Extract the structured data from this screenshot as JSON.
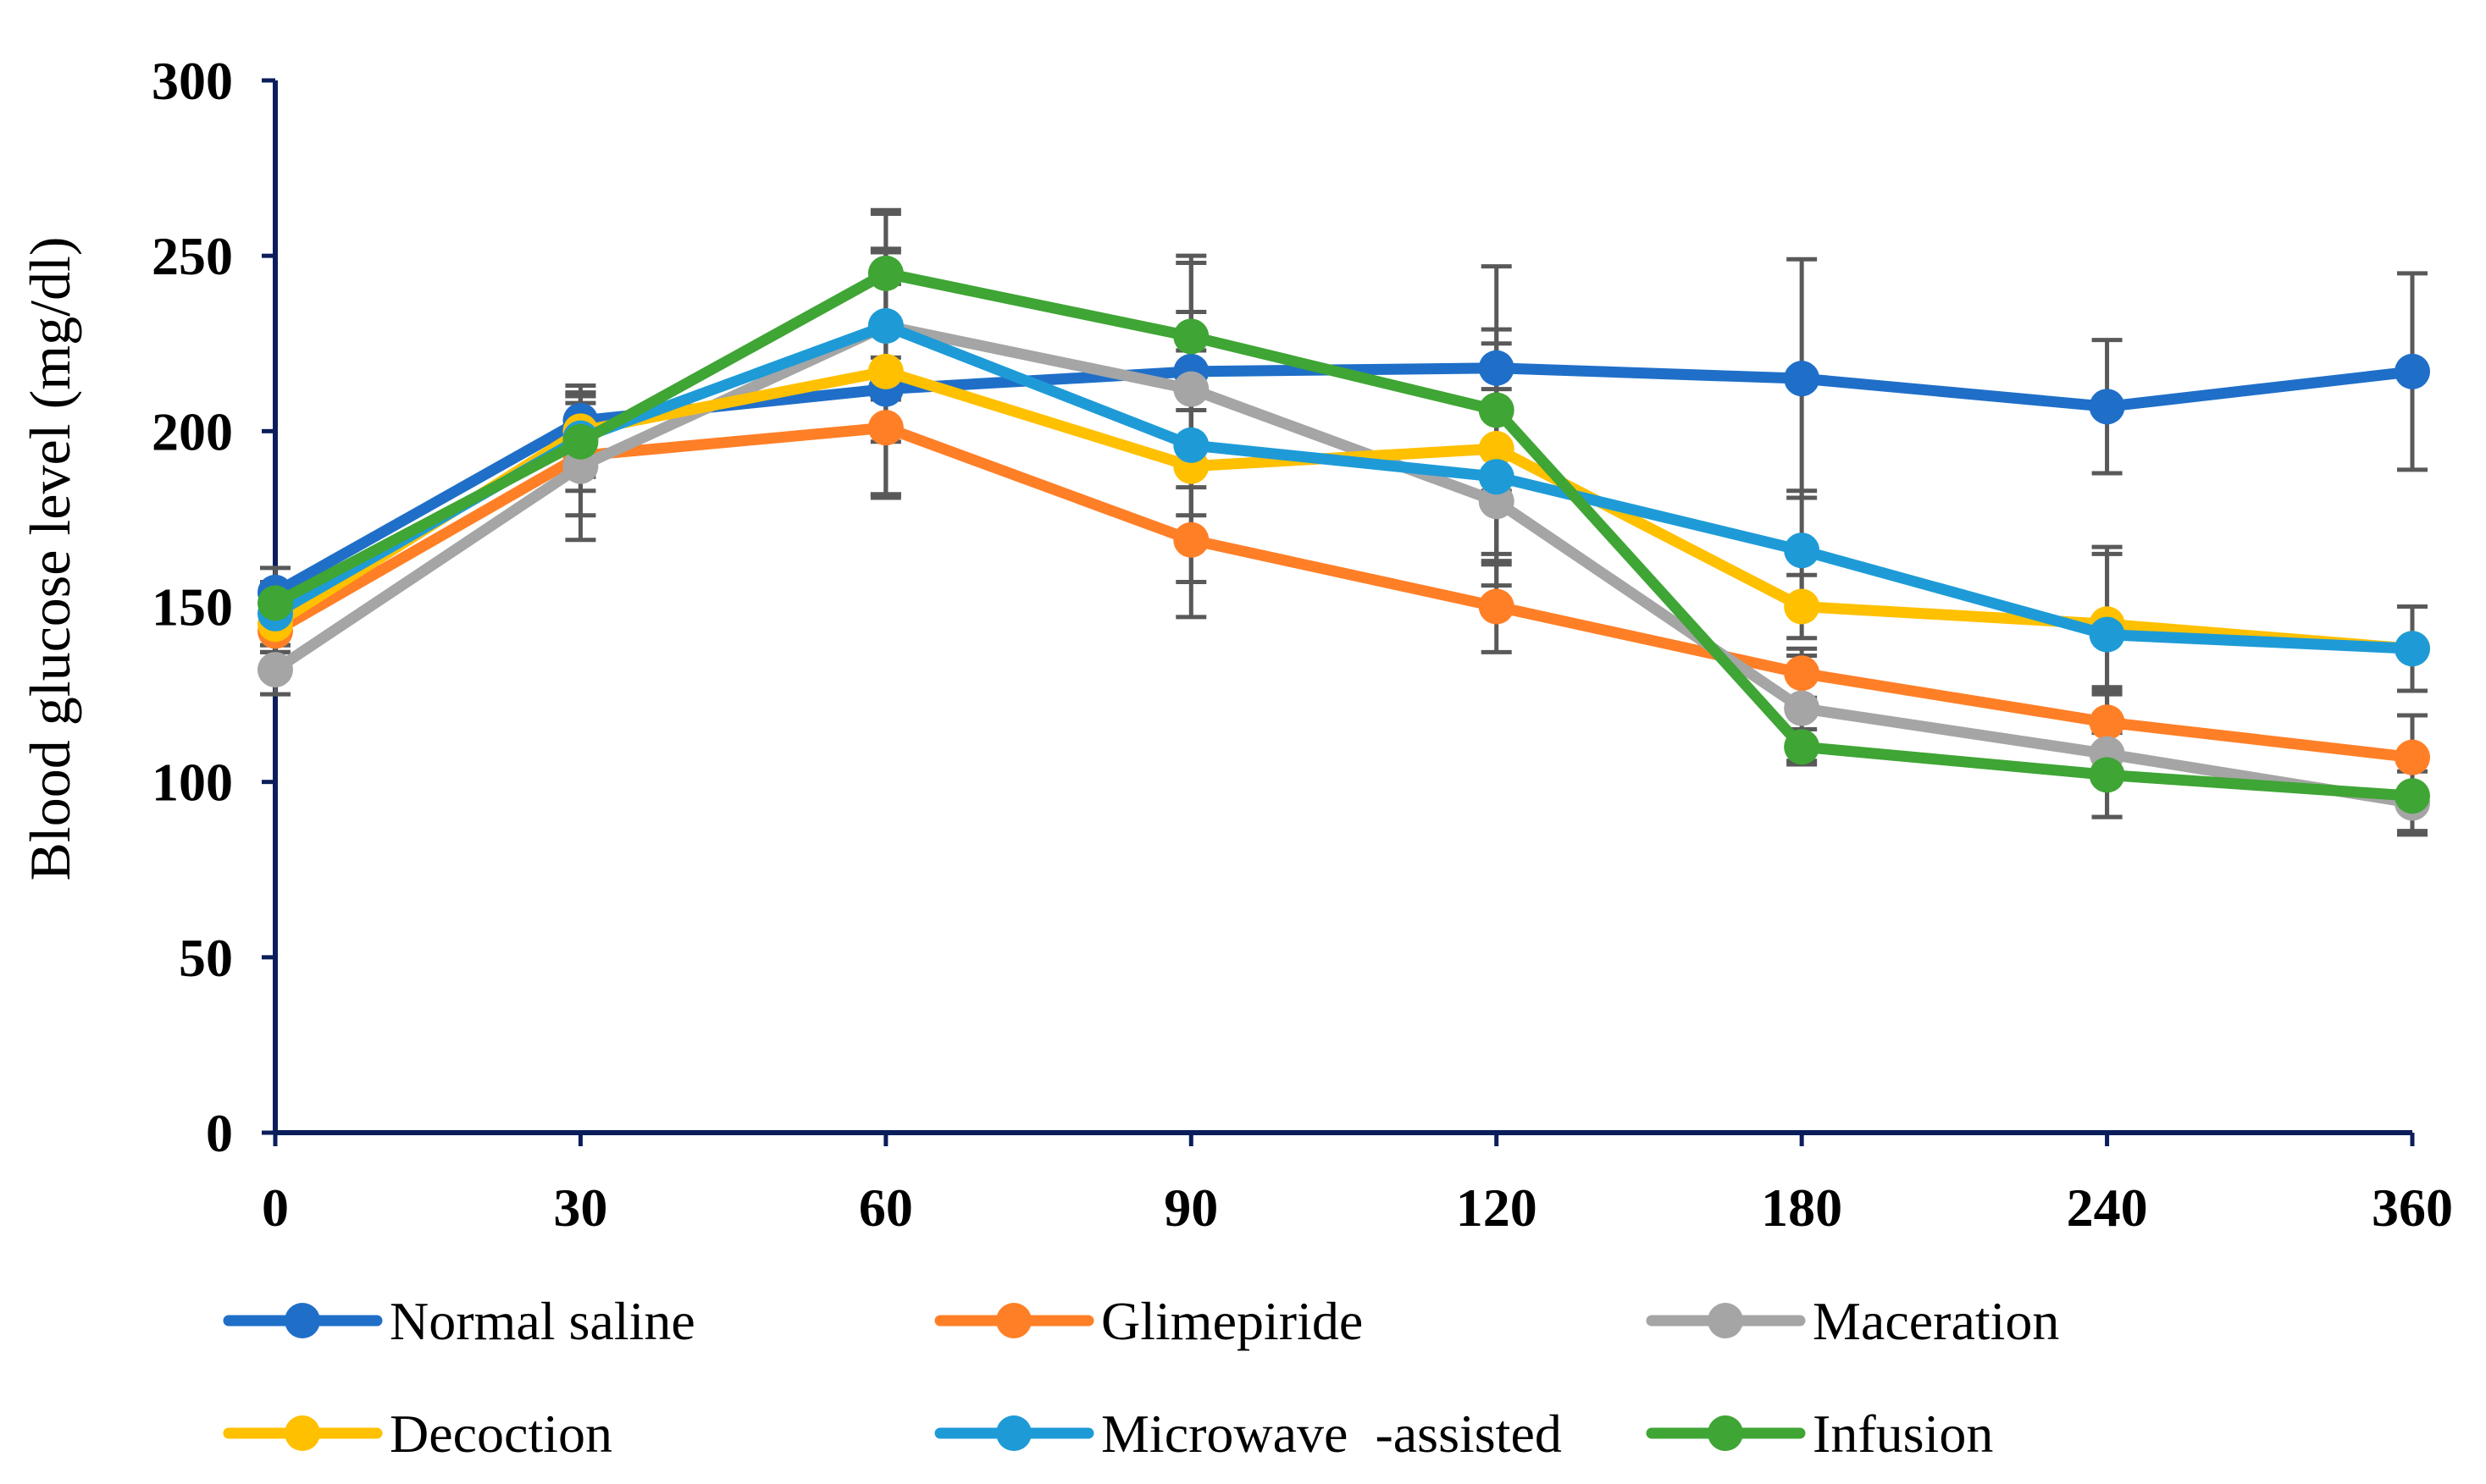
{
  "chart_data": {
    "type": "line",
    "title": "",
    "xlabel": "",
    "ylabel": "Blood glucose level (mg/dl)",
    "categories": [
      "0",
      "30",
      "60",
      "90",
      "120",
      "180",
      "240",
      "360"
    ],
    "ylim": [
      0,
      300
    ],
    "yticks": [
      0,
      50,
      100,
      150,
      200,
      250,
      300
    ],
    "grid": false,
    "legend_position": "bottom",
    "series": [
      {
        "name": "Normal saline",
        "color": "#1F6FC8",
        "values": [
          154,
          203,
          212,
          217,
          218,
          215,
          207,
          217
        ],
        "errors": [
          7,
          7,
          30,
          33,
          29,
          34,
          19,
          28
        ]
      },
      {
        "name": "Glimepiride",
        "color": "#FF7F27",
        "values": [
          143,
          193,
          201,
          169,
          150,
          131,
          117,
          107
        ],
        "errors": [
          6,
          17,
          20,
          22,
          13,
          7,
          10,
          12
        ]
      },
      {
        "name": "Maceration",
        "color": "#A5A5A5",
        "values": [
          132,
          190,
          230,
          212,
          180,
          121,
          108,
          94
        ],
        "errors": [
          7,
          21,
          33,
          22,
          24,
          15,
          18,
          9
        ]
      },
      {
        "name": "Decoction",
        "color": "#FFC000",
        "values": [
          145,
          200,
          217,
          190,
          195,
          150,
          145,
          138
        ],
        "errors": [
          8,
          13,
          35,
          33,
          30,
          9,
          20,
          12
        ]
      },
      {
        "name": "Microwave  -assisted",
        "color": "#1E9BD7",
        "values": [
          148,
          198,
          230,
          196,
          187,
          166,
          142,
          138
        ],
        "errors": [
          9,
          10,
          21,
          20,
          25,
          17,
          25,
          12
        ]
      },
      {
        "name": "Infusion",
        "color": "#3FA535",
        "values": [
          151,
          197,
          245,
          227,
          206,
          110,
          102,
          96
        ],
        "errors": [
          6,
          14,
          17,
          21,
          23,
          5,
          12,
          10
        ]
      }
    ]
  },
  "colors": {
    "axis": "#0B1E5B",
    "error_bar": "#595959"
  }
}
